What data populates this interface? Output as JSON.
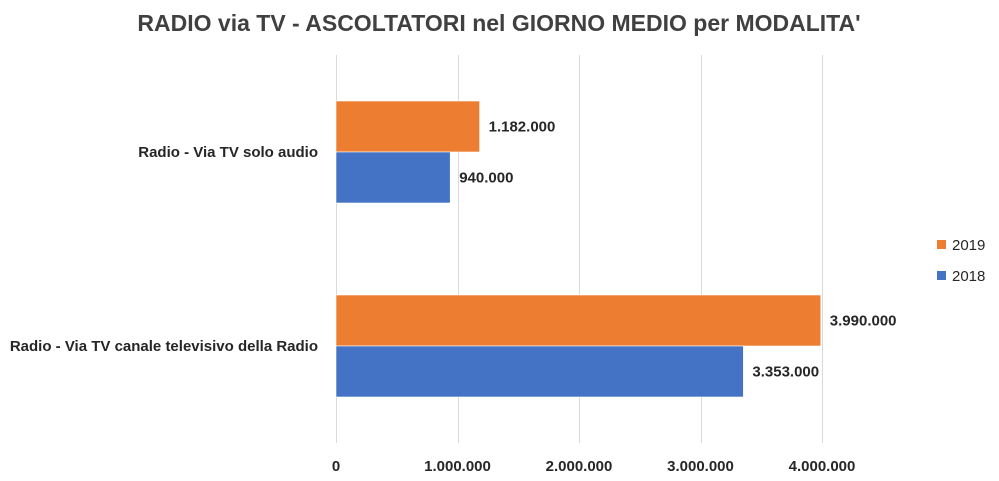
{
  "chart_data": {
    "type": "bar",
    "orientation": "horizontal",
    "title": "RADIO via TV - ASCOLTATORI nel GIORNO MEDIO per MODALITA'",
    "categories": [
      "Radio - Via TV solo audio",
      "Radio - Via TV canale televisivo della Radio"
    ],
    "series": [
      {
        "name": "2019",
        "color": "#ED7D31",
        "values": [
          1182000,
          3990000
        ],
        "labels": [
          "1.182.000",
          "3.990.000"
        ]
      },
      {
        "name": "2018",
        "color": "#4472C4",
        "values": [
          940000,
          3353000
        ],
        "labels": [
          "940.000",
          "3.353.000"
        ]
      }
    ],
    "xlim": [
      0,
      4000000
    ],
    "xticks": [
      0,
      1000000,
      2000000,
      3000000,
      4000000
    ],
    "xtick_labels": [
      "0",
      "1.000.000",
      "2.000.000",
      "3.000.000",
      "4.000.000"
    ],
    "grid": true,
    "legend_position": "right"
  }
}
